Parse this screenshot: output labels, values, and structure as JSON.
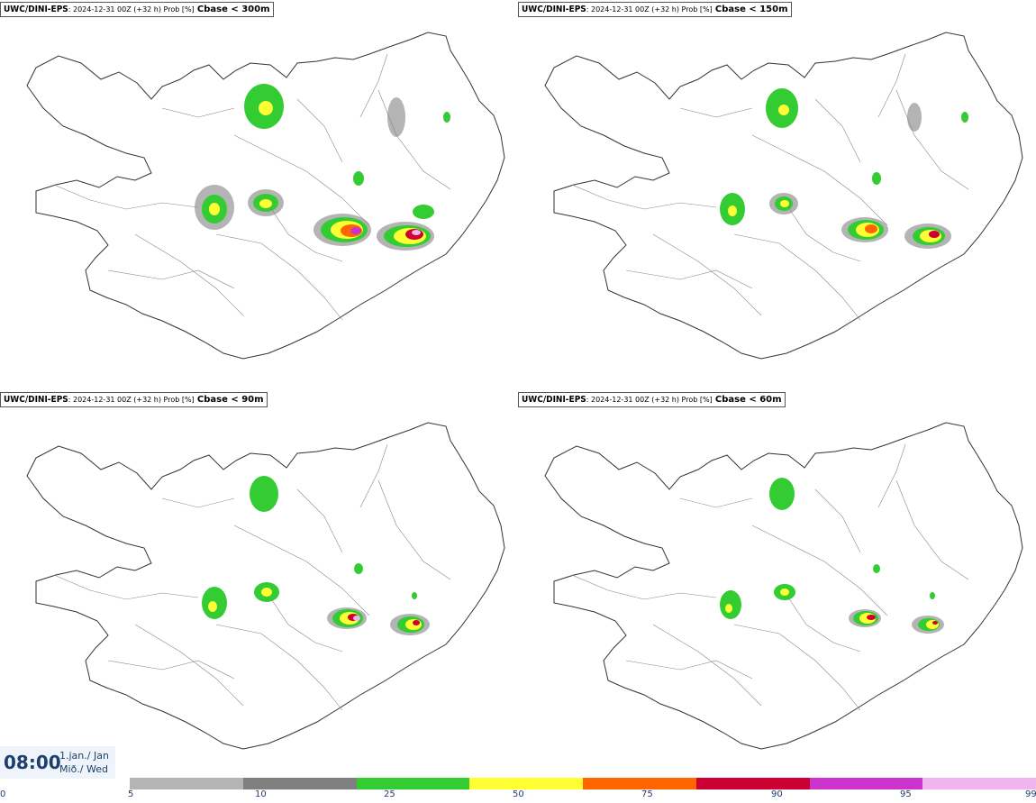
{
  "panels": [
    {
      "model": "UWC/DINI-EPS",
      "meta": ": 2024-12-31 00Z (+32 h) Prob [%]",
      "cbase": "Cbase < 300m"
    },
    {
      "model": "UWC/DINI-EPS",
      "meta": ": 2024-12-31 00Z (+32 h) Prob [%]",
      "cbase": "Cbase < 150m"
    },
    {
      "model": "UWC/DINI-EPS",
      "meta": ": 2024-12-31 00Z (+32 h) Prob [%]",
      "cbase": "Cbase < 90m"
    },
    {
      "model": "UWC/DINI-EPS",
      "meta": ": 2024-12-31 00Z (+32 h) Prob [%]",
      "cbase": "Cbase < 60m"
    }
  ],
  "time": {
    "clock": "08:00",
    "date_line1": "1.jan./ Jan",
    "date_line2": "Mið./ Wed"
  },
  "legend": {
    "ticks": [
      "0",
      "5",
      "10",
      "25",
      "50",
      "75",
      "90",
      "95",
      "99"
    ],
    "colors": [
      "#b4b4b4",
      "#808080",
      "#33cc33",
      "#ffff33",
      "#ff6600",
      "#cc0033",
      "#cc33cc",
      "#f0b4f0"
    ]
  }
}
